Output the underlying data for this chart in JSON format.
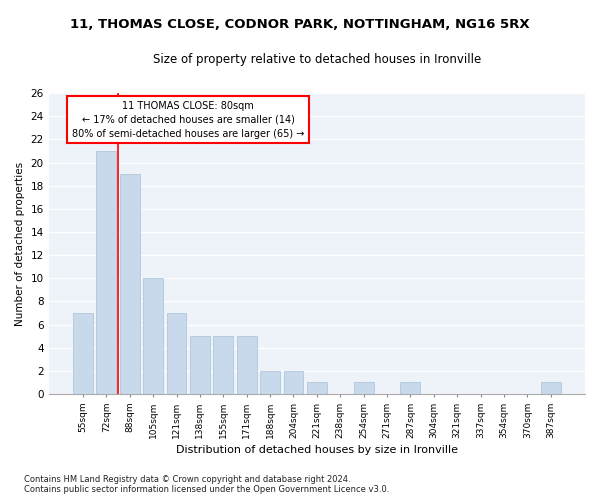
{
  "title": "11, THOMAS CLOSE, CODNOR PARK, NOTTINGHAM, NG16 5RX",
  "subtitle": "Size of property relative to detached houses in Ironville",
  "xlabel": "Distribution of detached houses by size in Ironville",
  "ylabel": "Number of detached properties",
  "bar_color": "#c9d9ec",
  "bar_edgecolor": "#a8c0d8",
  "categories": [
    "55sqm",
    "72sqm",
    "88sqm",
    "105sqm",
    "121sqm",
    "138sqm",
    "155sqm",
    "171sqm",
    "188sqm",
    "204sqm",
    "221sqm",
    "238sqm",
    "254sqm",
    "271sqm",
    "287sqm",
    "304sqm",
    "321sqm",
    "337sqm",
    "354sqm",
    "370sqm",
    "387sqm"
  ],
  "values": [
    7,
    21,
    19,
    10,
    7,
    5,
    5,
    5,
    2,
    2,
    1,
    0,
    1,
    0,
    1,
    0,
    0,
    0,
    0,
    0,
    1
  ],
  "ylim": [
    0,
    26
  ],
  "yticks": [
    0,
    2,
    4,
    6,
    8,
    10,
    12,
    14,
    16,
    18,
    20,
    22,
    24,
    26
  ],
  "annotation_text_line1": "11 THOMAS CLOSE: 80sqm",
  "annotation_text_line2": "← 17% of detached houses are smaller (14)",
  "annotation_text_line3": "80% of semi-detached houses are larger (65) →",
  "annotation_box_color": "white",
  "annotation_box_edgecolor": "red",
  "vline_color": "red",
  "background_color": "#eef2f9",
  "grid_color": "white",
  "footnote1": "Contains HM Land Registry data © Crown copyright and database right 2024.",
  "footnote2": "Contains public sector information licensed under the Open Government Licence v3.0."
}
